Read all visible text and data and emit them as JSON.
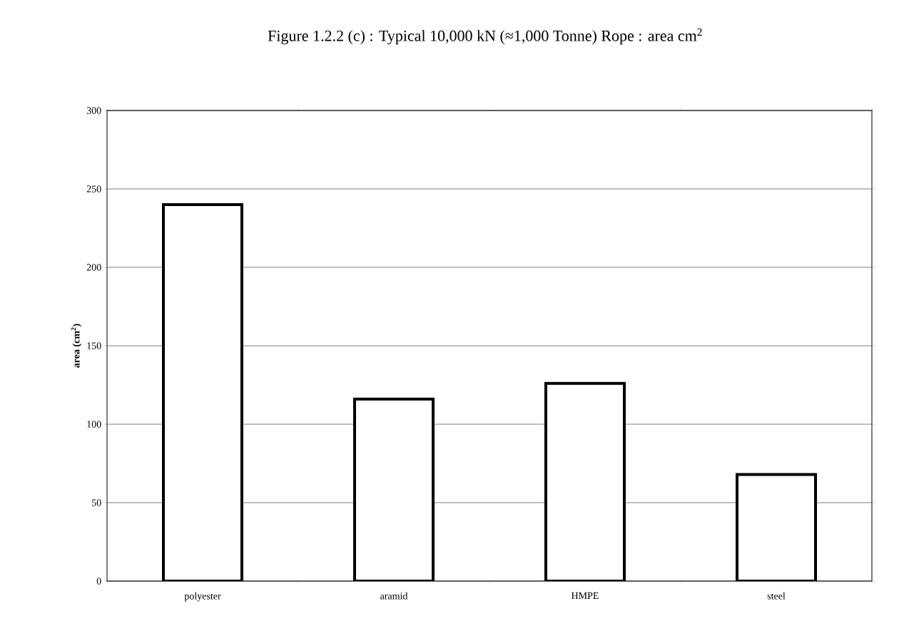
{
  "chart_data": {
    "type": "bar",
    "title": "Figure 1.2.2 (c) : Typical 10,000 kN (≈1,000 Tonne) Rope : area cm$^{2}$",
    "ylabel": "area (cm$^{2}$)",
    "categories": [
      "polyester",
      "aramid",
      "HMPE",
      "steel"
    ],
    "values": [
      240,
      116,
      126,
      68
    ],
    "color": "#ffffff",
    "ylim": [
      0,
      300
    ],
    "yticks": [
      0,
      50,
      100,
      150,
      200,
      250,
      300
    ],
    "grid": "y"
  }
}
